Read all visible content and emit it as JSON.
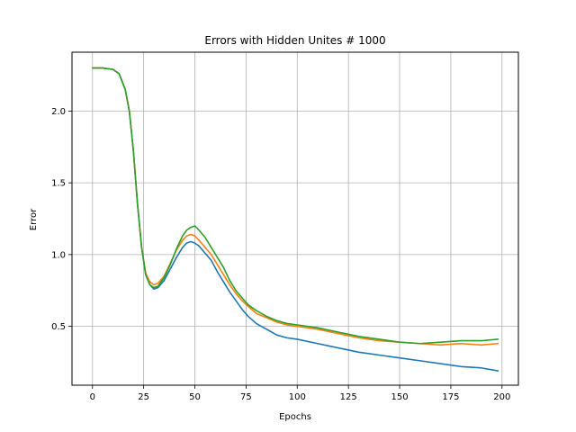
{
  "chart_data": {
    "type": "line",
    "title": "Errors with Hidden Unites # 1000",
    "xlabel": "Epochs",
    "ylabel": "Error",
    "xlim": [
      -10,
      208
    ],
    "ylim": [
      0.09,
      2.41
    ],
    "xticks": [
      0,
      25,
      50,
      75,
      100,
      125,
      150,
      175,
      200
    ],
    "yticks": [
      0.5,
      1.0,
      1.5,
      2.0
    ],
    "xtick_labels": [
      "0",
      "25",
      "50",
      "75",
      "100",
      "125",
      "150",
      "175",
      "200"
    ],
    "ytick_labels": [
      "0.5",
      "1.0",
      "1.5",
      "2.0"
    ],
    "grid": true,
    "legend": "none",
    "series": [
      {
        "color": "#1f77b4",
        "points": [
          [
            0,
            2.3
          ],
          [
            5,
            2.3
          ],
          [
            10,
            2.29
          ],
          [
            13,
            2.26
          ],
          [
            16,
            2.15
          ],
          [
            18,
            2.0
          ],
          [
            20,
            1.72
          ],
          [
            22,
            1.35
          ],
          [
            24,
            1.05
          ],
          [
            26,
            0.86
          ],
          [
            28,
            0.79
          ],
          [
            30,
            0.76
          ],
          [
            32,
            0.77
          ],
          [
            35,
            0.82
          ],
          [
            38,
            0.9
          ],
          [
            41,
            0.98
          ],
          [
            44,
            1.05
          ],
          [
            46,
            1.08
          ],
          [
            48,
            1.09
          ],
          [
            50,
            1.08
          ],
          [
            52,
            1.06
          ],
          [
            55,
            1.01
          ],
          [
            58,
            0.96
          ],
          [
            61,
            0.88
          ],
          [
            64,
            0.81
          ],
          [
            67,
            0.74
          ],
          [
            70,
            0.68
          ],
          [
            73,
            0.62
          ],
          [
            76,
            0.57
          ],
          [
            80,
            0.52
          ],
          [
            85,
            0.48
          ],
          [
            90,
            0.44
          ],
          [
            95,
            0.42
          ],
          [
            100,
            0.41
          ],
          [
            110,
            0.38
          ],
          [
            120,
            0.35
          ],
          [
            130,
            0.32
          ],
          [
            140,
            0.3
          ],
          [
            150,
            0.28
          ],
          [
            160,
            0.26
          ],
          [
            170,
            0.24
          ],
          [
            180,
            0.22
          ],
          [
            190,
            0.21
          ],
          [
            198,
            0.19
          ]
        ]
      },
      {
        "color": "#ff7f0e",
        "points": [
          [
            0,
            2.3
          ],
          [
            5,
            2.3
          ],
          [
            10,
            2.29
          ],
          [
            13,
            2.26
          ],
          [
            16,
            2.15
          ],
          [
            18,
            2.0
          ],
          [
            20,
            1.72
          ],
          [
            22,
            1.35
          ],
          [
            24,
            1.05
          ],
          [
            26,
            0.87
          ],
          [
            28,
            0.81
          ],
          [
            30,
            0.79
          ],
          [
            32,
            0.8
          ],
          [
            35,
            0.85
          ],
          [
            38,
            0.94
          ],
          [
            41,
            1.03
          ],
          [
            44,
            1.1
          ],
          [
            46,
            1.13
          ],
          [
            48,
            1.14
          ],
          [
            50,
            1.13
          ],
          [
            52,
            1.1
          ],
          [
            55,
            1.05
          ],
          [
            58,
            1.0
          ],
          [
            61,
            0.93
          ],
          [
            64,
            0.86
          ],
          [
            67,
            0.79
          ],
          [
            70,
            0.73
          ],
          [
            73,
            0.68
          ],
          [
            76,
            0.64
          ],
          [
            80,
            0.59
          ],
          [
            85,
            0.56
          ],
          [
            90,
            0.53
          ],
          [
            95,
            0.51
          ],
          [
            100,
            0.5
          ],
          [
            110,
            0.48
          ],
          [
            120,
            0.45
          ],
          [
            130,
            0.42
          ],
          [
            140,
            0.4
          ],
          [
            150,
            0.39
          ],
          [
            160,
            0.38
          ],
          [
            170,
            0.37
          ],
          [
            180,
            0.38
          ],
          [
            190,
            0.37
          ],
          [
            198,
            0.38
          ]
        ]
      },
      {
        "color": "#2ca02c",
        "points": [
          [
            0,
            2.3
          ],
          [
            5,
            2.3
          ],
          [
            10,
            2.29
          ],
          [
            13,
            2.26
          ],
          [
            16,
            2.15
          ],
          [
            18,
            2.0
          ],
          [
            20,
            1.72
          ],
          [
            22,
            1.35
          ],
          [
            24,
            1.05
          ],
          [
            26,
            0.86
          ],
          [
            28,
            0.79
          ],
          [
            30,
            0.77
          ],
          [
            32,
            0.78
          ],
          [
            35,
            0.84
          ],
          [
            38,
            0.93
          ],
          [
            41,
            1.04
          ],
          [
            44,
            1.13
          ],
          [
            46,
            1.17
          ],
          [
            48,
            1.19
          ],
          [
            50,
            1.2
          ],
          [
            52,
            1.17
          ],
          [
            55,
            1.12
          ],
          [
            58,
            1.05
          ],
          [
            61,
            0.98
          ],
          [
            64,
            0.91
          ],
          [
            67,
            0.82
          ],
          [
            70,
            0.75
          ],
          [
            73,
            0.7
          ],
          [
            76,
            0.65
          ],
          [
            80,
            0.61
          ],
          [
            85,
            0.57
          ],
          [
            90,
            0.54
          ],
          [
            95,
            0.52
          ],
          [
            100,
            0.51
          ],
          [
            110,
            0.49
          ],
          [
            120,
            0.46
          ],
          [
            130,
            0.43
          ],
          [
            140,
            0.41
          ],
          [
            150,
            0.39
          ],
          [
            160,
            0.38
          ],
          [
            170,
            0.39
          ],
          [
            180,
            0.4
          ],
          [
            190,
            0.4
          ],
          [
            198,
            0.41
          ]
        ]
      }
    ]
  }
}
